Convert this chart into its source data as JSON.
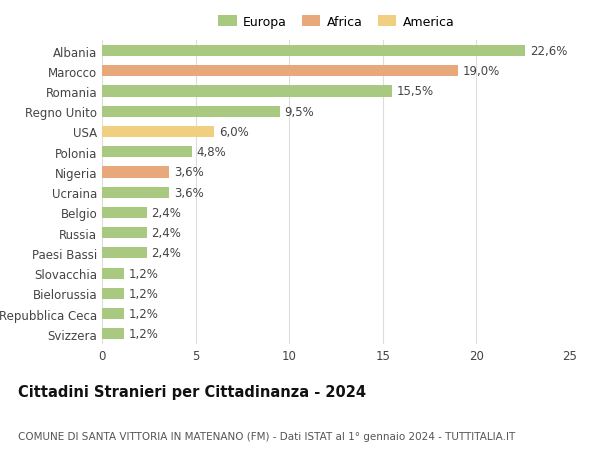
{
  "categories": [
    "Albania",
    "Marocco",
    "Romania",
    "Regno Unito",
    "USA",
    "Polonia",
    "Nigeria",
    "Ucraina",
    "Belgio",
    "Russia",
    "Paesi Bassi",
    "Slovacchia",
    "Bielorussia",
    "Repubblica Ceca",
    "Svizzera"
  ],
  "values": [
    22.6,
    19.0,
    15.5,
    9.5,
    6.0,
    4.8,
    3.6,
    3.6,
    2.4,
    2.4,
    2.4,
    1.2,
    1.2,
    1.2,
    1.2
  ],
  "labels": [
    "22,6%",
    "19,0%",
    "15,5%",
    "9,5%",
    "6,0%",
    "4,8%",
    "3,6%",
    "3,6%",
    "2,4%",
    "2,4%",
    "2,4%",
    "1,2%",
    "1,2%",
    "1,2%",
    "1,2%"
  ],
  "continent": [
    "Europa",
    "Africa",
    "Europa",
    "Europa",
    "America",
    "Europa",
    "Africa",
    "Europa",
    "Europa",
    "Europa",
    "Europa",
    "Europa",
    "Europa",
    "Europa",
    "Europa"
  ],
  "colors": {
    "Europa": "#a8c97f",
    "Africa": "#e8a87c",
    "America": "#f0d080"
  },
  "legend_labels": [
    "Europa",
    "Africa",
    "America"
  ],
  "legend_colors": [
    "#a8c97f",
    "#e8a87c",
    "#f0d080"
  ],
  "xlim": [
    0,
    25
  ],
  "xticks": [
    0,
    5,
    10,
    15,
    20,
    25
  ],
  "title": "Cittadini Stranieri per Cittadinanza - 2024",
  "subtitle": "COMUNE DI SANTA VITTORIA IN MATENANO (FM) - Dati ISTAT al 1° gennaio 2024 - TUTTITALIA.IT",
  "background_color": "#ffffff",
  "grid_color": "#dddddd",
  "bar_height": 0.55,
  "label_fontsize": 8.5,
  "tick_fontsize": 8.5,
  "title_fontsize": 10.5,
  "subtitle_fontsize": 7.5
}
